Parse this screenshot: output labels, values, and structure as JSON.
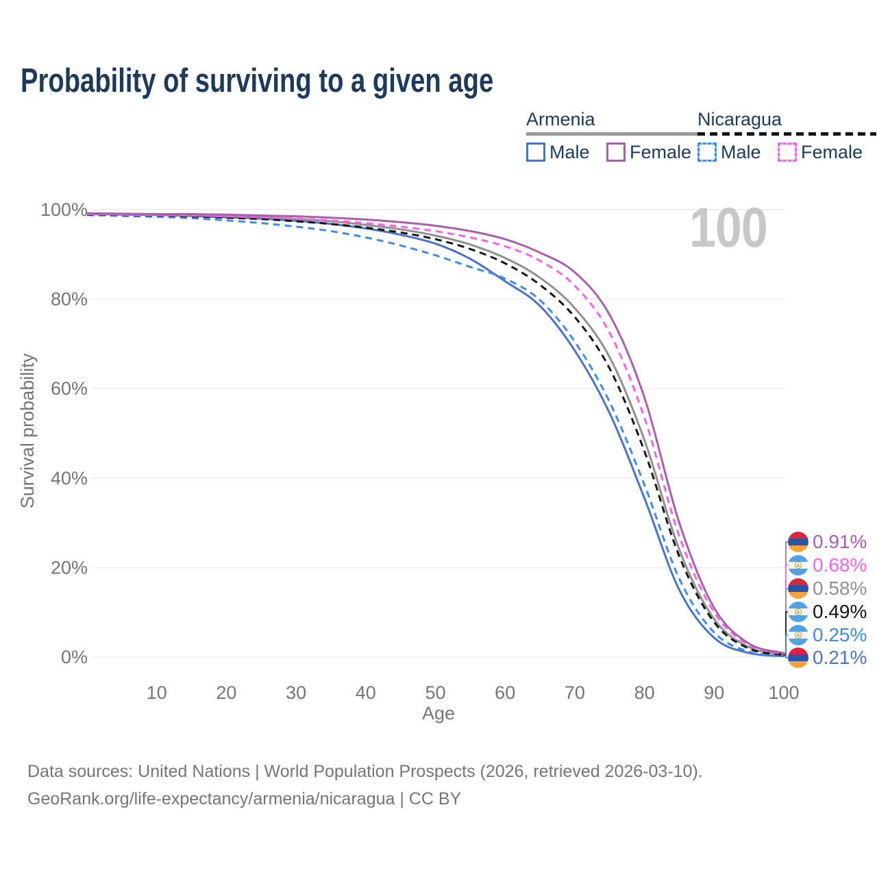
{
  "page": {
    "title": "Probability of surviving to a given age"
  },
  "legend": {
    "groups": [
      {
        "label": "Armenia",
        "underline_color": "#999999",
        "underline_style": "solid",
        "items": [
          {
            "label": "Male",
            "color": "#4a73c4",
            "style": "solid"
          },
          {
            "label": "Female",
            "color": "#aa5fae",
            "style": "solid"
          }
        ]
      },
      {
        "label": "Nicaragua",
        "underline_color": "#141414",
        "underline_style": "dashed",
        "items": [
          {
            "label": "Male",
            "color": "#3d8bf2",
            "style": "dashed"
          },
          {
            "label": "Female",
            "color": "#fb62e4",
            "style": "dashed"
          }
        ]
      }
    ]
  },
  "chart_data": {
    "type": "line",
    "title": "Probability of surviving to a given age",
    "xlabel": "Age",
    "ylabel": "Survival probability",
    "xlim": [
      0,
      100
    ],
    "ylim": [
      0,
      100
    ],
    "grid": "horizontal",
    "legend_position": "top-right",
    "watermark": "100",
    "x": [
      0,
      5,
      10,
      15,
      20,
      25,
      30,
      35,
      40,
      45,
      50,
      55,
      60,
      65,
      70,
      75,
      80,
      85,
      90,
      95,
      100
    ],
    "x_ticks": [
      10,
      20,
      30,
      40,
      50,
      60,
      70,
      80,
      90,
      100
    ],
    "y_ticks": [
      "0%",
      "20%",
      "40%",
      "60%",
      "80%",
      "100%"
    ],
    "y_tick_values": [
      0,
      20,
      40,
      60,
      80,
      100
    ],
    "series": [
      {
        "id": "armenia-female",
        "name": "Armenia Female",
        "country": "armenia",
        "style": "solid",
        "color": "#aa5fae",
        "end_label": "0.91%",
        "values": [
          99.2,
          99.1,
          99.0,
          99.0,
          98.9,
          98.7,
          98.5,
          98.2,
          97.8,
          97.2,
          96.4,
          95.2,
          93.4,
          90.4,
          86.0,
          76.5,
          58.0,
          30.0,
          11.0,
          3.0,
          0.91
        ]
      },
      {
        "id": "nicaragua-female",
        "name": "Nicaragua Female",
        "country": "nicaragua",
        "style": "dashed",
        "color": "#fb62e4",
        "end_label": "0.68%",
        "values": [
          99.0,
          98.9,
          98.8,
          98.7,
          98.5,
          98.3,
          98.0,
          97.6,
          97.0,
          96.2,
          95.2,
          93.8,
          91.8,
          88.6,
          83.0,
          72.5,
          53.5,
          27.0,
          10.0,
          2.7,
          0.68
        ]
      },
      {
        "id": "armenia-all",
        "name": "Armenia (both sexes)",
        "country": "armenia",
        "style": "solid",
        "color": "#909090",
        "end_label": "0.58%",
        "values": [
          99.1,
          99.0,
          98.9,
          98.8,
          98.6,
          98.3,
          97.9,
          97.4,
          96.6,
          95.6,
          94.2,
          92.2,
          89.2,
          84.8,
          78.0,
          67.0,
          48.5,
          24.0,
          8.5,
          2.2,
          0.58
        ]
      },
      {
        "id": "nicaragua-all",
        "name": "Nicaragua (both sexes)",
        "country": "nicaragua",
        "style": "dashed",
        "color": "#141414",
        "end_label": "0.49%",
        "values": [
          98.9,
          98.8,
          98.7,
          98.5,
          98.2,
          97.9,
          97.4,
          96.8,
          96.0,
          94.9,
          93.4,
          91.2,
          88.0,
          83.2,
          76.0,
          64.5,
          46.0,
          22.5,
          7.8,
          1.9,
          0.49
        ]
      },
      {
        "id": "nicaragua-male",
        "name": "Nicaragua Male",
        "country": "nicaragua",
        "style": "dashed",
        "color": "#3d8bf2",
        "end_label": "0.25%",
        "values": [
          98.8,
          98.6,
          98.4,
          98.1,
          97.6,
          97.0,
          96.2,
          95.2,
          93.8,
          92.0,
          89.8,
          87.2,
          84.6,
          79.8,
          70.5,
          57.0,
          38.5,
          17.5,
          5.5,
          1.2,
          0.25
        ]
      },
      {
        "id": "armenia-male",
        "name": "Armenia Male",
        "country": "armenia",
        "style": "solid",
        "color": "#4a73c4",
        "end_label": "0.21%",
        "values": [
          99.0,
          98.9,
          98.8,
          98.6,
          98.3,
          98.0,
          97.5,
          96.8,
          95.8,
          94.4,
          92.4,
          89.0,
          84.0,
          78.5,
          68.5,
          54.5,
          35.5,
          15.0,
          4.3,
          0.9,
          0.21
        ]
      }
    ]
  },
  "footer": {
    "line1": "Data sources: United Nations | World Population Prospects (2026, retrieved 2026-03-10).",
    "line2": "GeoRank.org/life-expectancy/armenia/nicaragua | CC BY"
  },
  "colors": {
    "title": "#1d3a5a",
    "axis_text": "#757575",
    "grid": "#ebebeb",
    "watermark": "#c7c7c7"
  }
}
